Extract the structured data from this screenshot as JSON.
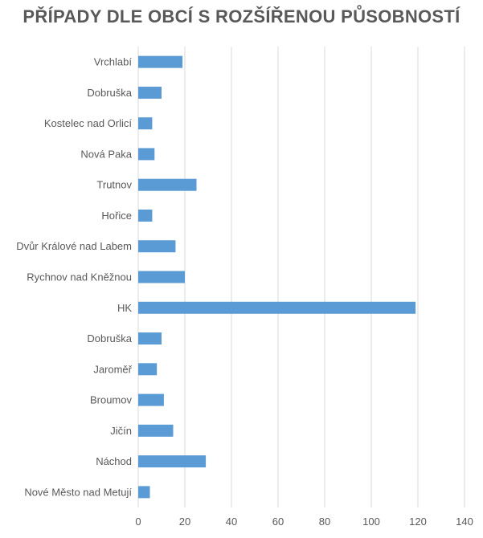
{
  "chart_data": {
    "type": "bar",
    "orientation": "horizontal",
    "title": "PŘÍPADY DLE OBCÍ S ROZŠÍŘENOU PŮSOBNOSTÍ",
    "xlabel": "",
    "ylabel": "",
    "categories": [
      "Vrchlabí",
      "Dobruška",
      "Kostelec nad Orlicí",
      "Nová Paka",
      "Trutnov",
      "Hořice",
      "Dvůr Králové nad Labem",
      "Rychnov nad Kněžnou",
      "HK",
      "Dobruška",
      "Jaroměř",
      "Broumov",
      "Jičín",
      "Náchod",
      "Nové Město nad Metují"
    ],
    "values": [
      19,
      10,
      6,
      7,
      25,
      6,
      16,
      20,
      119,
      10,
      8,
      11,
      15,
      29,
      5
    ],
    "xlim": [
      0,
      140
    ],
    "xticks": [
      0,
      20,
      40,
      60,
      80,
      100,
      120,
      140
    ],
    "grid": true,
    "legend": "none",
    "bar_color": "#5b9bd5",
    "grid_color": "#d9d9d9",
    "text_color": "#595959"
  }
}
